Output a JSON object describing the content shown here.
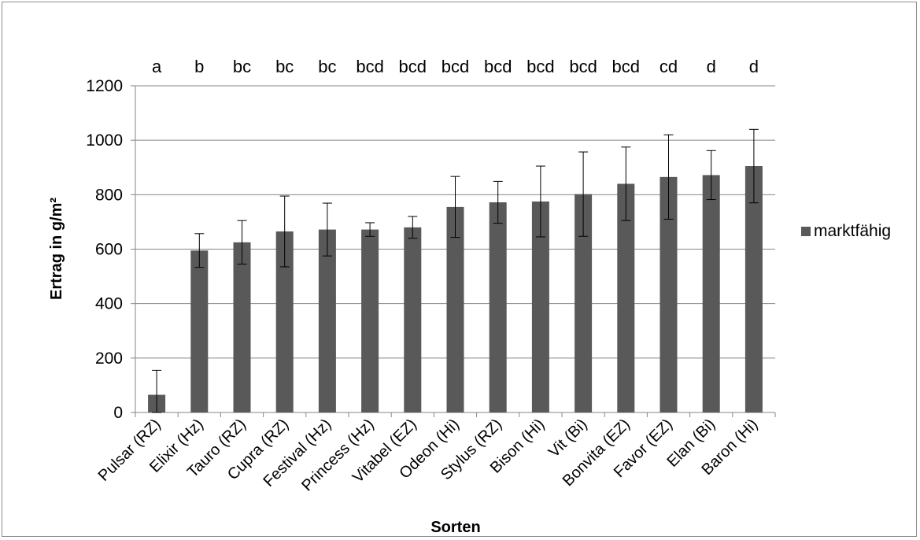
{
  "chart_data": {
    "type": "bar",
    "title": "",
    "xlabel": "Sorten",
    "ylabel": "Ertrag in g/m²",
    "ylim": [
      0,
      1200
    ],
    "yticks": [
      0,
      200,
      400,
      600,
      800,
      1000,
      1200
    ],
    "grid": true,
    "legend_position": "right",
    "bar_color": "#595959",
    "categories": [
      "Pulsar (RZ)",
      "Elixir (Hz)",
      "Tauro (RZ)",
      "Cupra (RZ)",
      "Festival (Hz)",
      "Princess (Hz)",
      "Vitabel (EZ)",
      "Odeon (Hi)",
      "Stylus (RZ)",
      "Bison (Hi)",
      "Vit (Bi)",
      "Bonvita (EZ)",
      "Favor (EZ)",
      "Elan (Bi)",
      "Baron (Hi)"
    ],
    "series": [
      {
        "name": "marktfähig",
        "values": [
          65,
          595,
          625,
          665,
          672,
          672,
          680,
          755,
          772,
          775,
          802,
          840,
          865,
          872,
          905
        ],
        "error": [
          90,
          62,
          80,
          130,
          97,
          25,
          40,
          112,
          77,
          130,
          155,
          135,
          155,
          90,
          135
        ]
      }
    ],
    "significance_letters": [
      "a",
      "b",
      "bc",
      "bc",
      "bc",
      "bcd",
      "bcd",
      "bcd",
      "bcd",
      "bcd",
      "bcd",
      "bcd",
      "cd",
      "d",
      "d"
    ]
  }
}
